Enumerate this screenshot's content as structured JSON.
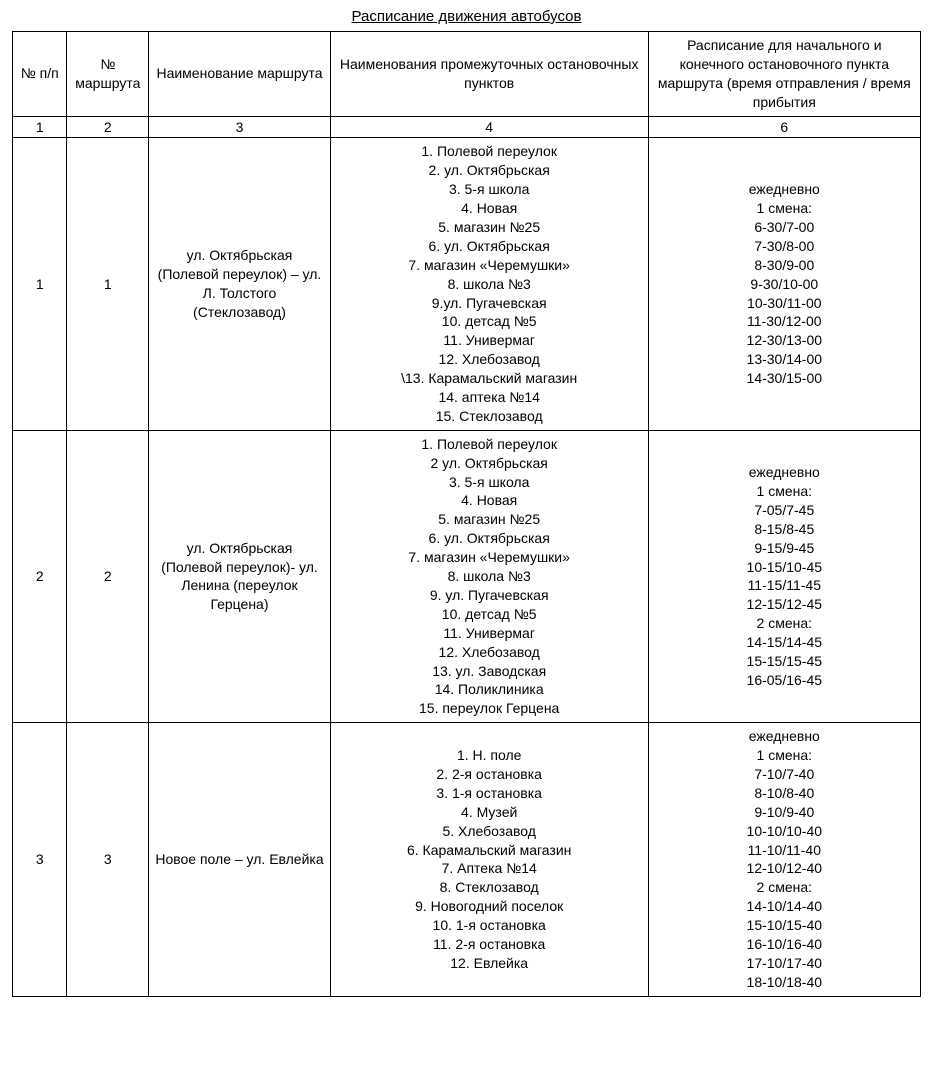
{
  "title": "Расписание движения автобусов",
  "columns": [
    "№ п/п",
    "№ маршрута",
    "Наименование маршрута",
    "Наименования промежуточных остановочных пунктов",
    "Расписание для начального и конечного остановочного пункта маршрута (время отправления / время прибытия"
  ],
  "index_row": [
    "1",
    "2",
    "3",
    "4",
    "6"
  ],
  "rows": [
    {
      "num": "1",
      "route": "1",
      "name": "ул. Октябрьская (Полевой переулок) – ул. Л. Толстого (Стеклозавод)",
      "stops": "1. Полевой переулок\n2. ул. Октябрьская\n3. 5-я школа\n4. Новая\n5. магазин №25\n6. ул. Октябрьская\n7. магазин «Черемушки»\n8. школа №3\n9.ул. Пугачевская\n10. детсад №5\n11. Универмаг\n12. Хлебозавод\n\\13. Карамальский магазин\n14. аптека №14\n15. Стеклозавод",
      "schedule": "ежедневно\n1 смена:\n6-30/7-00\n7-30/8-00\n8-30/9-00\n9-30/10-00\n10-30/11-00\n11-30/12-00\n12-30/13-00\n13-30/14-00\n14-30/15-00"
    },
    {
      "num": "2",
      "route": "2",
      "name": "ул. Октябрьская (Полевой переулок)- ул. Ленина (переулок Герцена)",
      "stops": "1. Полевой переулок\n2 ул. Октябрьская\n3. 5-я школа\n4. Новая\n5. магазин №25\n6. ул. Октябрьская\n7. магазин «Черемушки»\n8. школа №3\n9. ул. Пугачевская\n10. детсад №5\n11. Универмаг\n12. Хлебозавод\n13. ул. Заводская\n14. Поликлиника\n15. переулок Герцена",
      "schedule": "ежедневно\n1 смена:\n7-05/7-45\n8-15/8-45\n9-15/9-45\n10-15/10-45\n11-15/11-45\n12-15/12-45\n2 смена:\n14-15/14-45\n15-15/15-45\n16-05/16-45"
    },
    {
      "num": "3",
      "route": "3",
      "name": "Новое поле – ул. Евлейка",
      "stops": "1. Н. поле\n2. 2-я остановка\n3. 1-я остановка\n4. Музей\n5. Хлебозавод\n6. Карамальский магазин\n7. Аптека №14\n8. Стеклозавод\n9. Новогодний поселок\n10. 1-я остановка\n11. 2-я остановка\n12. Евлейка",
      "schedule": "ежедневно\n1 смена:\n7-10/7-40\n8-10/8-40\n9-10/9-40\n10-10/10-40\n11-10/11-40\n12-10/12-40\n2 смена:\n14-10/14-40\n15-10/15-40\n16-10/16-40\n17-10/17-40\n18-10/18-40"
    }
  ],
  "style": {
    "background_color": "#ffffff",
    "text_color": "#000000",
    "border_color": "#000000",
    "font_family": "Arial",
    "title_fontsize": 15,
    "body_fontsize": 14,
    "col_widths_pct": [
      6,
      9,
      20,
      35,
      30
    ]
  }
}
